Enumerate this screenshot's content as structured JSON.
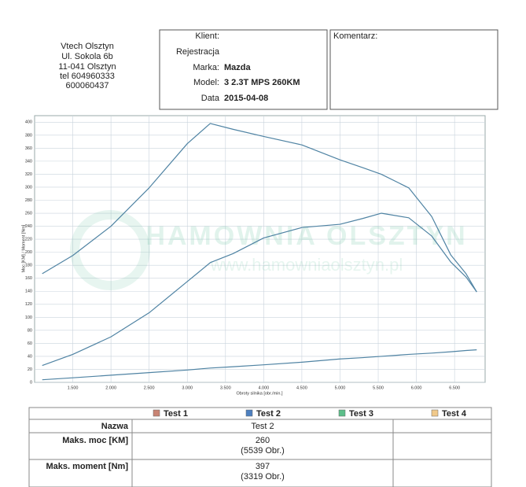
{
  "header": {
    "address": [
      "Vtech Olsztyn",
      "Ul. Sokola 6b",
      "11-041 Olsztyn",
      "tel 604960333",
      "600060437"
    ],
    "fields": [
      {
        "label": "Klient:",
        "value": null
      },
      {
        "label": "Rejestracja",
        "value": null
      },
      {
        "label": "Marka:",
        "value": "Mazda"
      },
      {
        "label": "Model:",
        "value": "3 2.3T MPS 260KM"
      },
      {
        "label": "Data",
        "value": "2015-04-08"
      }
    ],
    "comment_label": "Komentarz:"
  },
  "chart_data": {
    "type": "line",
    "y_label": "Moc [KM] / Moment [Nm]",
    "x_label": "Obroty silnika [obr./min.]",
    "annotations": [
      "HAMOWNIA OLSZTYN",
      "www.hamowniaolsztyn.pl"
    ],
    "x": [
      1100,
      1500,
      2000,
      2500,
      3000,
      3300,
      3600,
      4000,
      4500,
      5000,
      5300,
      5539,
      5900,
      6200,
      6450,
      6650,
      6790
    ],
    "series": [
      {
        "color": "#4f83a3",
        "values": [
          167,
          195,
          240,
          299,
          367,
          398,
          389,
          378,
          365,
          342,
          330,
          320,
          299,
          255,
          196,
          167,
          139
        ]
      },
      {
        "color": "#4f83a3",
        "values": [
          26,
          43,
          70,
          107,
          155,
          184,
          198,
          222,
          238,
          243,
          252,
          260,
          253,
          225,
          185,
          162,
          139
        ]
      },
      {
        "color": "#4f83a3",
        "values": [
          4,
          7,
          11,
          15,
          19,
          22,
          24,
          27,
          31,
          36,
          38,
          40,
          43,
          45,
          47,
          49,
          50
        ]
      }
    ],
    "xlim": [
      1000,
      6900
    ],
    "ylim": [
      0,
      410
    ],
    "xticks": [
      {
        "value": 1500,
        "label": "1.500"
      },
      {
        "value": 2000,
        "label": "2.000"
      },
      {
        "value": 2500,
        "label": "2.500"
      },
      {
        "value": 3000,
        "label": "3.000"
      },
      {
        "value": 3500,
        "label": "3.500"
      },
      {
        "value": 4000,
        "label": "4.000"
      },
      {
        "value": 4500,
        "label": "4.500"
      },
      {
        "value": 5000,
        "label": "5.000"
      },
      {
        "value": 5500,
        "label": "5.500"
      },
      {
        "value": 6000,
        "label": "6.000"
      },
      {
        "value": 6500,
        "label": "6.500"
      }
    ],
    "yticks": [
      0,
      20,
      40,
      60,
      80,
      100,
      120,
      140,
      160,
      180,
      200,
      220,
      240,
      260,
      280,
      300,
      320,
      340,
      360,
      380,
      400
    ],
    "grid": true
  },
  "table": {
    "legend": [
      {
        "name": "Test 1",
        "color": "#c98474"
      },
      {
        "name": "Test 2",
        "color": "#4d80c0"
      },
      {
        "name": "Test 3",
        "color": "#5cbf8a"
      },
      {
        "name": "Test 4",
        "color": "#f0c98a"
      }
    ],
    "rows": [
      [
        "Nazwa",
        "Test 2"
      ],
      [
        "Maks. moc [KM]",
        "260",
        "(5539 Obr.)"
      ],
      [
        "Maks. moment [Nm]",
        "397",
        "(3319 Obr.)"
      ]
    ]
  }
}
